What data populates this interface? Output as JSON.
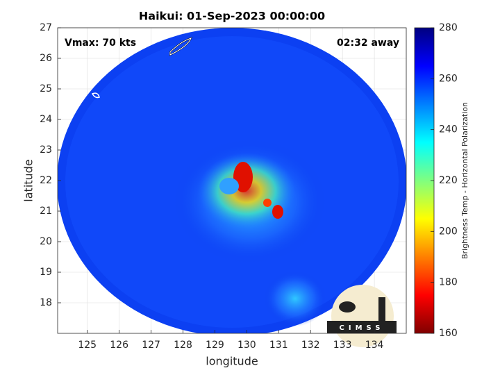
{
  "chart_data": {
    "type": "map",
    "title": "Haikui: 01-Sep-2023 00:00:00",
    "xlabel": "longitude",
    "ylabel": "latitude",
    "xlim": [
      124.07,
      135.0
    ],
    "ylim": [
      17.0,
      27.0
    ],
    "xticks": [
      125,
      126,
      127,
      128,
      129,
      130,
      131,
      132,
      133,
      134
    ],
    "yticks": [
      18,
      19,
      20,
      21,
      22,
      23,
      24,
      25,
      26,
      27
    ],
    "grid": true,
    "annotations": [
      "Vmax: 70 kts",
      "02:32 away"
    ],
    "colorbar": {
      "label": "Brightness Temp - Horizontal Polarization",
      "colormap": "jet",
      "clim": [
        160,
        280
      ],
      "ticks": [
        160,
        180,
        200,
        220,
        240,
        260,
        280
      ]
    },
    "logo": "CIMSS"
  }
}
